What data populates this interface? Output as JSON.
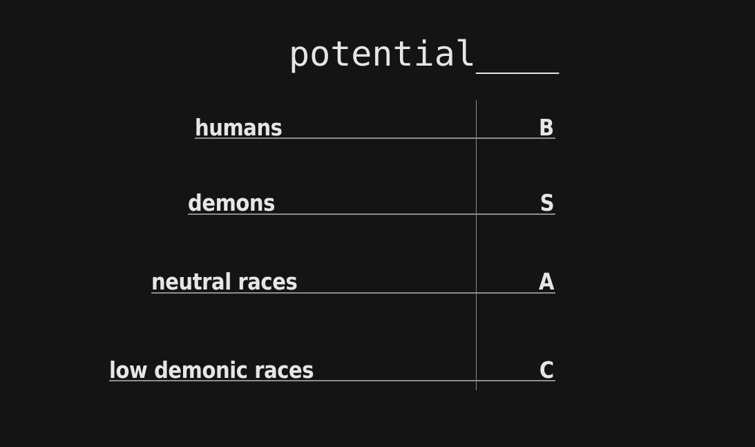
{
  "title": "potential____",
  "rows": [
    {
      "label": "humans",
      "grade": "B"
    },
    {
      "label": "demons",
      "grade": "S"
    },
    {
      "label": "neutral races",
      "grade": "A"
    },
    {
      "label": "low demonic races",
      "grade": "C"
    }
  ]
}
